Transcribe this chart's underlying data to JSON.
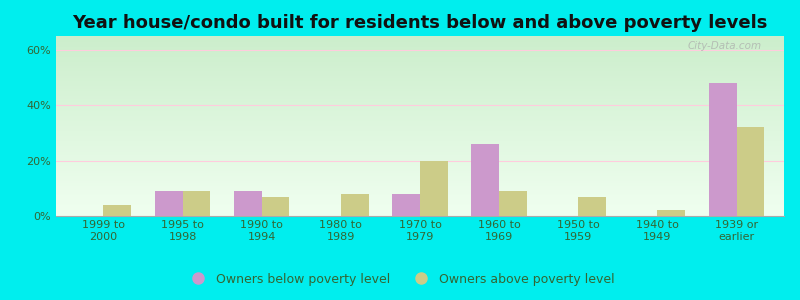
{
  "title": "Year house/condo built for residents below and above poverty levels",
  "categories": [
    "1999 to\n2000",
    "1995 to\n1998",
    "1990 to\n1994",
    "1980 to\n1989",
    "1970 to\n1979",
    "1960 to\n1969",
    "1950 to\n1959",
    "1940 to\n1949",
    "1939 or\nearlier"
  ],
  "below_poverty": [
    0,
    9,
    9,
    0,
    8,
    26,
    0,
    0,
    48
  ],
  "above_poverty": [
    4,
    9,
    7,
    8,
    20,
    9,
    7,
    2,
    32
  ],
  "below_color": "#cc99cc",
  "above_color": "#cccc88",
  "outer_background": "#00eeee",
  "plot_bg_top": "#e8f8e8",
  "plot_bg_bottom": "#f8fff8",
  "grid_color": "#ffccdd",
  "ytick_labels": [
    "0%",
    "20%",
    "40%",
    "60%"
  ],
  "ytick_values": [
    0,
    20,
    40,
    60
  ],
  "ylim": [
    0,
    65
  ],
  "legend_below": "Owners below poverty level",
  "legend_above": "Owners above poverty level",
  "title_fontsize": 13,
  "tick_fontsize": 8,
  "legend_fontsize": 9,
  "bar_width": 0.35,
  "watermark": "City-Data.com"
}
